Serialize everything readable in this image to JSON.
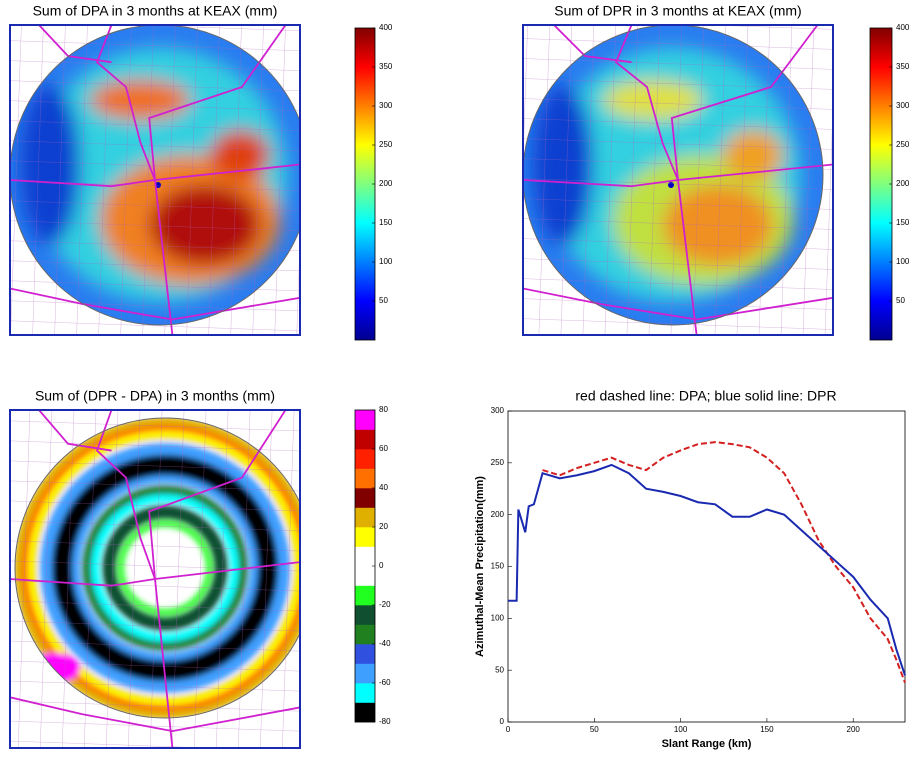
{
  "chart_data": [
    {
      "type": "map",
      "title": "Sum of DPA in 3 months at KEAX (mm)",
      "colormap": "jet",
      "clim": [
        0,
        400
      ],
      "cticks": [
        50,
        100,
        150,
        200,
        250,
        300,
        350,
        400
      ]
    },
    {
      "type": "map",
      "title": "Sum of DPR in 3 months at KEAX (mm)",
      "colormap": "jet",
      "clim": [
        0,
        400
      ],
      "cticks": [
        50,
        100,
        150,
        200,
        250,
        300,
        350,
        400
      ]
    },
    {
      "type": "map",
      "title": "Sum of (DPR - DPA) in 3 months (mm)",
      "colormap": "discrete",
      "clim": [
        -80,
        80
      ],
      "cticks": [
        -80,
        -60,
        -40,
        -20,
        0,
        20,
        40,
        60,
        80
      ],
      "colors": [
        "#000000",
        "#00ffff",
        "#3f9fff",
        "#3050e0",
        "#208020",
        "#105030",
        "#20ff20",
        "#ffffff",
        "#ffffff",
        "#ffff00",
        "#e0b000",
        "#800000",
        "#ff7000",
        "#ff2000",
        "#c00000",
        "#ff00ff"
      ]
    },
    {
      "type": "line",
      "title": "red dashed line: DPA; blue solid line: DPR",
      "xlabel": "Slant Range (km)",
      "ylabel": "Azimuthal-Mean Precipitation(mm)",
      "xlim": [
        0,
        230
      ],
      "ylim": [
        0,
        300
      ],
      "xticks": [
        0,
        50,
        100,
        150,
        200
      ],
      "yticks": [
        0,
        50,
        100,
        150,
        200,
        250,
        300
      ],
      "x": [
        0,
        5,
        6,
        10,
        12,
        15,
        20,
        30,
        40,
        50,
        60,
        70,
        80,
        90,
        100,
        110,
        120,
        130,
        140,
        150,
        160,
        170,
        180,
        190,
        200,
        210,
        220,
        225,
        230
      ],
      "series": [
        {
          "name": "DPA",
          "color": "#d42020",
          "linestyle": "dashed",
          "values": [
            null,
            null,
            null,
            null,
            null,
            null,
            243,
            238,
            245,
            250,
            255,
            248,
            243,
            255,
            262,
            268,
            270,
            268,
            265,
            255,
            240,
            210,
            175,
            150,
            130,
            100,
            80,
            60,
            38
          ]
        },
        {
          "name": "DPR",
          "color": "#1a2ab0",
          "linestyle": "solid",
          "values": [
            117,
            117,
            205,
            183,
            208,
            210,
            240,
            235,
            238,
            242,
            248,
            240,
            225,
            222,
            218,
            212,
            210,
            198,
            198,
            205,
            200,
            185,
            170,
            155,
            140,
            118,
            100,
            70,
            45
          ]
        }
      ]
    }
  ]
}
